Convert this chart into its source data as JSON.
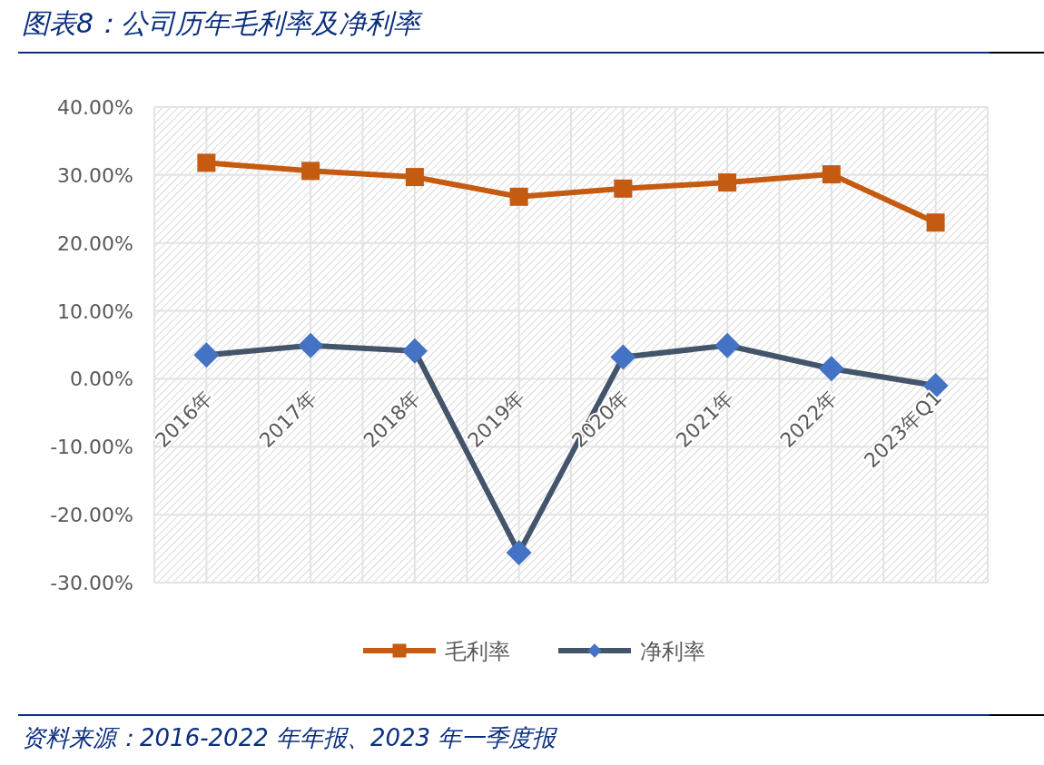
{
  "chart_data": {
    "type": "line",
    "title": "图表8：公司历年毛利率及净利率",
    "categories": [
      "2016年",
      "2017年",
      "2018年",
      "2019年",
      "2020年",
      "2021年",
      "2022年",
      "2023年Q1"
    ],
    "series": [
      {
        "name": "毛利率",
        "color": "#c55a11",
        "marker": "square",
        "values": [
          31.8,
          30.6,
          29.7,
          26.8,
          28.0,
          28.9,
          30.1,
          23.0
        ]
      },
      {
        "name": "净利率",
        "color": "#44546a",
        "marker": "diamond",
        "values": [
          3.5,
          4.9,
          4.1,
          -25.6,
          3.2,
          4.9,
          1.5,
          -1.0
        ]
      }
    ],
    "ylim": [
      -30,
      40
    ],
    "yticks": [
      {
        "value": -30,
        "label": "-30.00%"
      },
      {
        "value": -20,
        "label": "-20.00%"
      },
      {
        "value": -10,
        "label": "-10.00%"
      },
      {
        "value": 0,
        "label": "0.00%"
      },
      {
        "value": 10,
        "label": "10.00%"
      },
      {
        "value": 20,
        "label": "20.00%"
      },
      {
        "value": 30,
        "label": "30.00%"
      },
      {
        "value": 40,
        "label": "40.00%"
      }
    ],
    "grid": true,
    "legend": "bottom",
    "line_style": "solid",
    "annotations": [
      "资料来源：2016-2022 年年报、2023 年一季度报"
    ]
  }
}
